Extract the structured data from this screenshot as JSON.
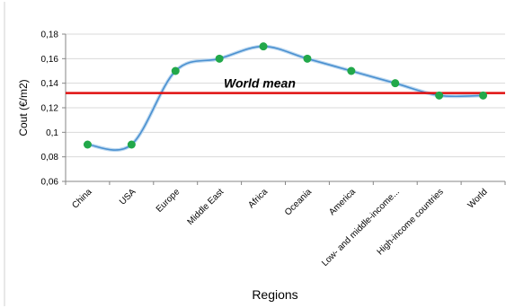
{
  "chart_data": {
    "type": "line",
    "title": "",
    "xlabel": "Regions",
    "ylabel": "Cout (€/m2)",
    "categories": [
      "China",
      "USA",
      "Europe",
      "Middle East",
      "Africa",
      "Oceania",
      "America",
      "Low- and middle-income...",
      "High-income countries",
      "World"
    ],
    "series": [
      {
        "name": "",
        "values": [
          0.09,
          0.09,
          0.15,
          0.16,
          0.17,
          0.16,
          0.15,
          0.14,
          0.13,
          0.13
        ]
      }
    ],
    "reference_line": {
      "label": "World mean",
      "value": 0.132
    },
    "ylim": [
      0.06,
      0.18
    ],
    "yticks": [
      "0,06",
      "0,08",
      "0,1",
      "0,12",
      "0,14",
      "0,16",
      "0,18"
    ],
    "grid": true,
    "legend": "none",
    "colors": {
      "line": "#4a90d0",
      "marker": "#22a84a",
      "reference": "#e01010",
      "grid": "#d9d9d9",
      "axis": "#868686"
    }
  }
}
